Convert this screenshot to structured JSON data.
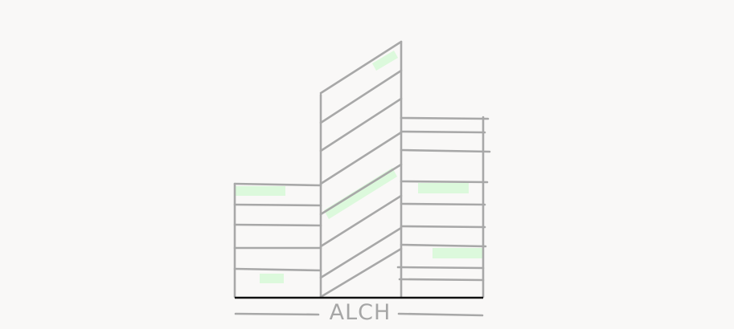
{
  "logo": {
    "wordmark": "ALCH",
    "line_color": "#a8a8a8",
    "base_color": "#111111",
    "highlight_color": "#dcf9dc",
    "text_color": "#a6a6a6",
    "icon": "building-sketch-icon"
  }
}
